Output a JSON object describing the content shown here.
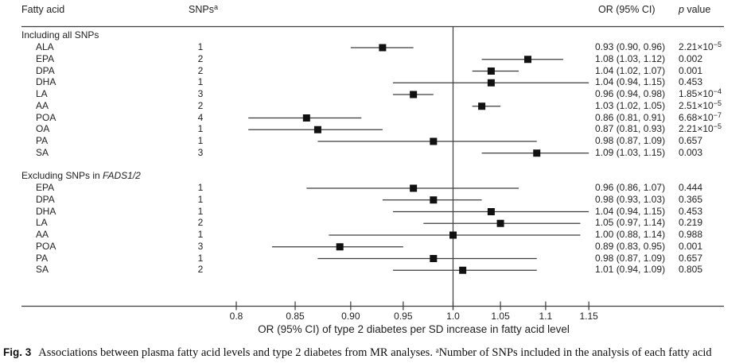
{
  "chart_data": {
    "type": "scatter",
    "subtype": "forest_plot",
    "x_scale": "log",
    "xlabel": "OR (95% CI) of type 2 diabetes per SD increase in fatty acid level",
    "xlim": [
      0.8,
      1.15
    ],
    "x_ticks": [
      0.8,
      0.85,
      0.9,
      0.95,
      1.0,
      1.05,
      1.1,
      1.15
    ],
    "x_tick_labels": [
      "0.8",
      "0.85",
      "0.90",
      "0.95",
      "1.0",
      "1.05",
      "1.1",
      "1.15"
    ],
    "reference_line": 1.0,
    "grid": false,
    "marker_color": "#111111",
    "line_color": "#3c3c3c",
    "columns": {
      "fatty_acid": "Fatty acid",
      "snps": "SNPs",
      "snps_sup": "a",
      "or": "OR (95% CI)",
      "p_italic": "p",
      "p_rest": " value"
    },
    "sections": [
      {
        "header": "Including all SNPs",
        "header_italic": "",
        "rows": [
          {
            "label": "ALA",
            "snps": "1",
            "or": 0.93,
            "ci_low": 0.9,
            "ci_high": 0.96,
            "or_text": "0.93 (0.90, 0.96)",
            "p_text": "2.21×10^−5"
          },
          {
            "label": "EPA",
            "snps": "2",
            "or": 1.08,
            "ci_low": 1.03,
            "ci_high": 1.12,
            "or_text": "1.08 (1.03, 1.12)",
            "p_text": "0.002"
          },
          {
            "label": "DPA",
            "snps": "2",
            "or": 1.04,
            "ci_low": 1.02,
            "ci_high": 1.07,
            "or_text": "1.04 (1.02, 1.07)",
            "p_text": "0.001"
          },
          {
            "label": "DHA",
            "snps": "1",
            "or": 1.04,
            "ci_low": 0.94,
            "ci_high": 1.15,
            "or_text": "1.04 (0.94, 1.15)",
            "p_text": "0.453"
          },
          {
            "label": "LA",
            "snps": "3",
            "or": 0.96,
            "ci_low": 0.94,
            "ci_high": 0.98,
            "or_text": "0.96 (0.94, 0.98)",
            "p_text": "1.85×10^−4"
          },
          {
            "label": "AA",
            "snps": "2",
            "or": 1.03,
            "ci_low": 1.02,
            "ci_high": 1.05,
            "or_text": "1.03 (1.02, 1.05)",
            "p_text": "2.51×10^−5"
          },
          {
            "label": "POA",
            "snps": "4",
            "or": 0.86,
            "ci_low": 0.81,
            "ci_high": 0.91,
            "or_text": "0.86 (0.81, 0.91)",
            "p_text": "6.68×10^−7"
          },
          {
            "label": "OA",
            "snps": "1",
            "or": 0.87,
            "ci_low": 0.81,
            "ci_high": 0.93,
            "or_text": "0.87 (0.81, 0.93)",
            "p_text": "2.21×10^−5"
          },
          {
            "label": "PA",
            "snps": "1",
            "or": 0.98,
            "ci_low": 0.87,
            "ci_high": 1.09,
            "or_text": "0.98 (0.87, 1.09)",
            "p_text": "0.657"
          },
          {
            "label": "SA",
            "snps": "3",
            "or": 1.09,
            "ci_low": 1.03,
            "ci_high": 1.15,
            "or_text": "1.09 (1.03, 1.15)",
            "p_text": "0.003"
          }
        ]
      },
      {
        "header": "Excluding SNPs in ",
        "header_italic": "FADS1/2",
        "rows": [
          {
            "label": "EPA",
            "snps": "1",
            "or": 0.96,
            "ci_low": 0.86,
            "ci_high": 1.07,
            "or_text": "0.96 (0.86, 1.07)",
            "p_text": "0.444"
          },
          {
            "label": "DPA",
            "snps": "1",
            "or": 0.98,
            "ci_low": 0.93,
            "ci_high": 1.03,
            "or_text": "0.98 (0.93, 1.03)",
            "p_text": "0.365"
          },
          {
            "label": "DHA",
            "snps": "1",
            "or": 1.04,
            "ci_low": 0.94,
            "ci_high": 1.15,
            "or_text": "1.04 (0.94, 1.15)",
            "p_text": "0.453"
          },
          {
            "label": "LA",
            "snps": "2",
            "or": 1.05,
            "ci_low": 0.97,
            "ci_high": 1.14,
            "or_text": "1.05 (0.97, 1.14)",
            "p_text": "0.219"
          },
          {
            "label": "AA",
            "snps": "1",
            "or": 1.0,
            "ci_low": 0.88,
            "ci_high": 1.14,
            "or_text": "1.00 (0.88, 1.14)",
            "p_text": "0.988"
          },
          {
            "label": "POA",
            "snps": "3",
            "or": 0.89,
            "ci_low": 0.83,
            "ci_high": 0.95,
            "or_text": "0.89 (0.83, 0.95)",
            "p_text": "0.001"
          },
          {
            "label": "PA",
            "snps": "1",
            "or": 0.98,
            "ci_low": 0.87,
            "ci_high": 1.09,
            "or_text": "0.98 (0.87, 1.09)",
            "p_text": "0.657"
          },
          {
            "label": "SA",
            "snps": "2",
            "or": 1.01,
            "ci_low": 0.94,
            "ci_high": 1.09,
            "or_text": "1.01 (0.94, 1.09)",
            "p_text": "0.805"
          }
        ]
      }
    ]
  },
  "caption": {
    "fig_label": "Fig. 3",
    "text": "Associations between plasma fatty acid levels and type 2 diabetes from MR analyses. ",
    "sup": "a",
    "text2": "Number of SNPs included in the analysis of each fatty acid"
  }
}
